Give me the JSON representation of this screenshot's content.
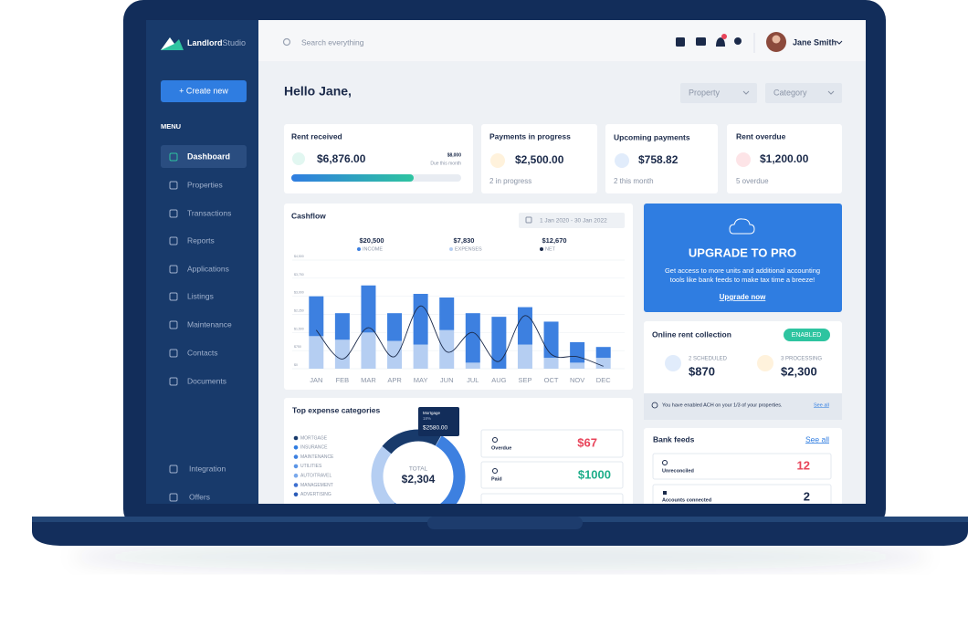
{
  "sidebar": {
    "logo": {
      "bold": "Landlord",
      "light": "Studio"
    },
    "create_button": "+ Create new",
    "menu_label": "MENU",
    "menu": [
      "Dashboard",
      "Properties",
      "Transactions",
      "Reports",
      "Applications",
      "Listings",
      "Maintenance",
      "Contacts",
      "Documents"
    ],
    "bottom_menu": [
      "Integration",
      "Offers"
    ]
  },
  "topbar": {
    "search_placeholder": "Search everything",
    "user_name": "Jane Smith"
  },
  "greeting": "Hello Jane,",
  "filters": [
    "Property",
    "Category"
  ],
  "summary_cards": [
    {
      "title": "Rent received",
      "amount": "$6,876.00",
      "target": "$8,000",
      "target_note": "Due this month"
    },
    {
      "title": "Payments in progress",
      "amount": "$2,500.00",
      "note": "2 in progress"
    },
    {
      "title": "Upcoming payments",
      "amount": "$758.82",
      "note": "2 this month"
    },
    {
      "title": "Rent overdue",
      "amount": "$1,200.00",
      "note": "5 overdue"
    }
  ],
  "cashflow": {
    "title": "Cashflow",
    "date_range": "1 Jan 2020 - 30 Jan 2022",
    "totals": [
      "$20,500",
      "$7,830",
      "$12,670"
    ],
    "chart_data": {
      "type": "bar",
      "stacked": true,
      "categories": [
        "JAN",
        "FEB",
        "MAR",
        "APR",
        "MAY",
        "JUN",
        "JUL",
        "AUG",
        "SEP",
        "OCT",
        "NOV",
        "DEC"
      ],
      "series": [
        {
          "name": "INCOME",
          "type": "bar",
          "color": "#3d80e0",
          "values": [
            1650,
            1100,
            1950,
            1150,
            2100,
            1350,
            2050,
            2150,
            1550,
            1500,
            850,
            450
          ]
        },
        {
          "name": "EXPENSES",
          "type": "bar",
          "color": "#b5cef2",
          "values": [
            1350,
            1200,
            1500,
            1150,
            1000,
            1600,
            250,
            0,
            1000,
            450,
            250,
            450
          ]
        },
        {
          "name": "NET",
          "type": "line",
          "color": "#1b2a4a",
          "values": [
            1600,
            400,
            1700,
            500,
            2600,
            700,
            1500,
            300,
            2200,
            600,
            500,
            100
          ]
        }
      ],
      "ylim": [
        0,
        4500
      ],
      "yticks": [
        {
          "value": 0,
          "label": "$0"
        },
        {
          "value": 750,
          "label": "$750"
        },
        {
          "value": 1500,
          "label": "$1,500"
        },
        {
          "value": 2250,
          "label": "$2,250"
        },
        {
          "value": 3000,
          "label": "$3,000"
        },
        {
          "value": 3750,
          "label": "$3,750"
        },
        {
          "value": 4500,
          "label": "$4,500"
        }
      ],
      "grid": true
    }
  },
  "upgrade": {
    "title": "UPGRADE TO PRO",
    "text_line1": "Get access to more units and additional accounting",
    "text_line2": "tools like bank feeds to make tax time a breeze!",
    "link": "Upgrade now"
  },
  "online_rent": {
    "title": "Online rent collection",
    "status": "ENABLED",
    "scheduled_label": "2 SCHEDULED",
    "scheduled_amount": "$870",
    "processing_label": "3 PROCESSING",
    "processing_amount": "$2,300",
    "notice": "You have enabled ACH on your 1/3 of your properties.",
    "notice_link": "See all"
  },
  "top_expenses": {
    "title": "Top expense categories",
    "legend": [
      "MORTGAGE",
      "INSURANCE",
      "MAINTENANCE",
      "UTILITIES",
      "AUTO/TRAVEL",
      "MANAGEMENT",
      "ADVERTISING"
    ],
    "tooltip": {
      "name": "Mortgage",
      "share": "18%",
      "amount": "$2580.00"
    },
    "total_label": "TOTAL",
    "total": "$2,304",
    "items": [
      {
        "label": "Overdue",
        "amount": "$67"
      },
      {
        "label": "Paid",
        "amount": "$1000"
      }
    ]
  },
  "bank_feeds": {
    "title": "Bank feeds",
    "link": "See all",
    "items": [
      {
        "label": "Unreconciled",
        "count": "12"
      },
      {
        "label": "Accounts connected",
        "count": "2"
      }
    ]
  }
}
